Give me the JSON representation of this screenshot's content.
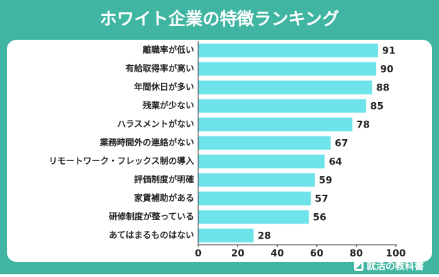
{
  "chart_data": {
    "type": "hbar",
    "title": "ホワイト企業の特徴ランキング",
    "categories": [
      "離職率が低い",
      "有給取得率が高い",
      "年間休日が多い",
      "残業が少ない",
      "ハラスメントがない",
      "業務時間外の連絡がない",
      "リモートワーク・フレックス制の導入",
      "評価制度が明確",
      "家賃補助がある",
      "研修制度が整っている",
      "あてはまるものはない"
    ],
    "values": [
      91,
      90,
      88,
      85,
      78,
      67,
      64,
      59,
      57,
      56,
      28
    ],
    "color": "#6fe3ea",
    "xlim": [
      0,
      100
    ],
    "xticks": [
      0,
      20,
      40,
      60,
      80,
      100
    ]
  },
  "brand": "就活の教科書"
}
